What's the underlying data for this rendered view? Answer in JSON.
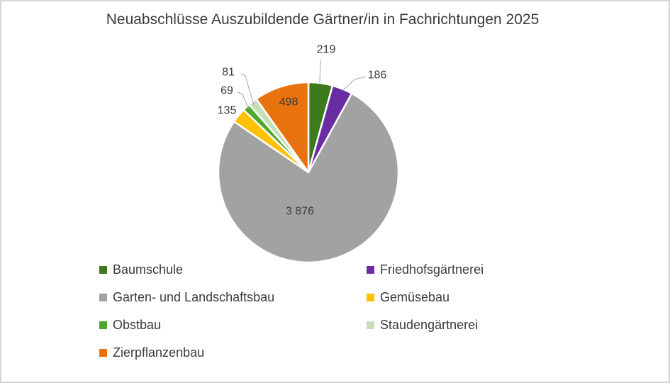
{
  "window": {
    "background_color": "#FFFFFF",
    "border_color": "#D5D5D5"
  },
  "chart_data": {
    "type": "pie",
    "title": "Neuabschlüsse Auszubildende Gärtner/in in Fachrichtungen 2025",
    "legend_position": "bottom-left, two columns",
    "grid": false,
    "series": [
      {
        "label": "Baumschule",
        "value": 219,
        "data_label": "219",
        "color": "#3C7A1B"
      },
      {
        "label": "Friedhofsgärtnerei",
        "value": 186,
        "data_label": "186",
        "color": "#6A2CA3"
      },
      {
        "label": "Garten- und Landschaftsbau",
        "value": 3876,
        "data_label": "3 876",
        "color": "#A2A2A2"
      },
      {
        "label": "Gemüsebau",
        "value": 135,
        "data_label": "135",
        "color": "#FFC000"
      },
      {
        "label": "Obstbau",
        "value": 69,
        "data_label": "69",
        "color": "#4EA72E"
      },
      {
        "label": "Staudengärtnerei",
        "value": 81,
        "data_label": "81",
        "color": "#C5E0B4"
      },
      {
        "label": "Zierpflanzenbau",
        "value": 498,
        "data_label": "498",
        "color": "#E8720D"
      }
    ],
    "slice_border_color": "#FFFFFF",
    "leader_line_color": "#A6A6A6",
    "text_color": "#3B3B3B"
  }
}
